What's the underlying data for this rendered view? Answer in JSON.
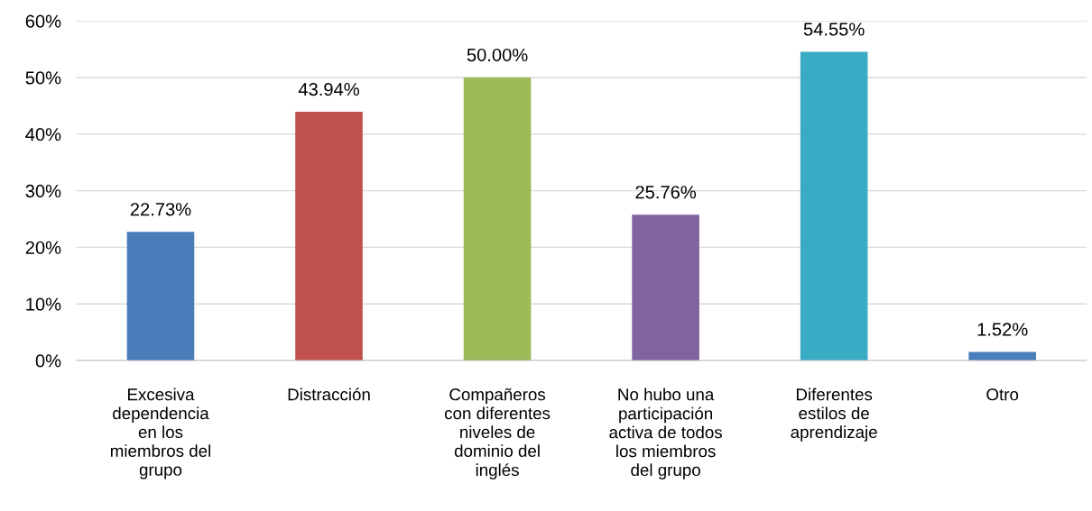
{
  "chart_data": {
    "type": "bar",
    "categories": [
      "Excesiva\ndependencia\nen los\nmiembros del\ngrupo",
      "Distracción",
      "Compañeros\ncon diferentes\nniveles de\ndominio del\ninglés",
      "No hubo una\nparticipación\nactiva de todos\nlos miembros\ndel grupo",
      "Diferentes\nestilos de\naprendizaje",
      "Otro"
    ],
    "values": [
      22.73,
      43.94,
      50.0,
      25.76,
      54.55,
      1.52
    ],
    "value_labels": [
      "22.73%",
      "43.94%",
      "50.00%",
      "25.76%",
      "54.55%",
      "1.52%"
    ],
    "colors": [
      "#4a7ebb",
      "#c0504d",
      "#9bbb59",
      "#8064a2",
      "#3aabc4",
      "#4a7ebb"
    ],
    "ylim": [
      0,
      60
    ],
    "yticks": [
      {
        "value": 0,
        "label": "0%"
      },
      {
        "value": 10,
        "label": "10%"
      },
      {
        "value": 20,
        "label": "20%"
      },
      {
        "value": 30,
        "label": "30%"
      },
      {
        "value": 40,
        "label": "40%"
      },
      {
        "value": 50,
        "label": "50%"
      },
      {
        "value": 60,
        "label": "60%"
      }
    ],
    "grid": "y"
  }
}
